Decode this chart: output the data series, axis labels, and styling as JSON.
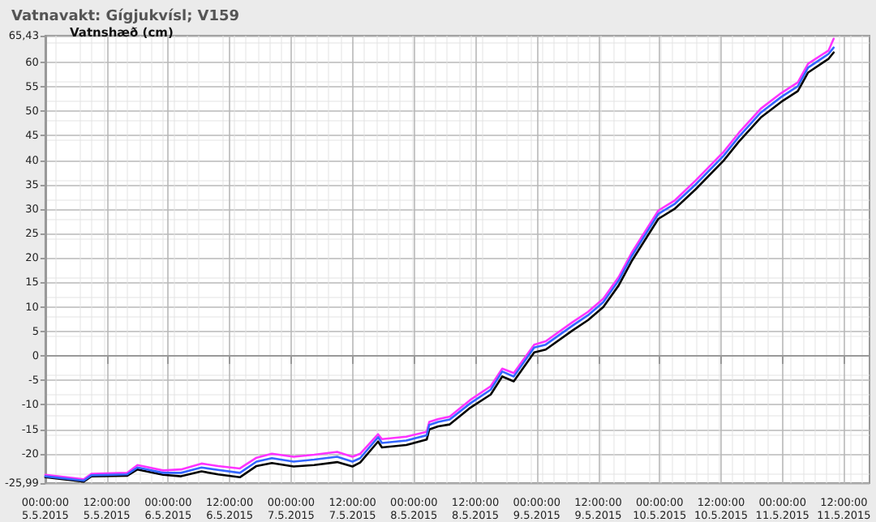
{
  "chart_data": {
    "type": "line",
    "title": "Vatnavakt: Gígjukvísl; V159",
    "ylabel": "Vatnshæð (cm)",
    "x": [
      "2015-05-05T00:00",
      "2015-05-05T07:30",
      "2015-05-05T09:00",
      "2015-05-05T16:00",
      "2015-05-05T18:00",
      "2015-05-05T23:00",
      "2015-05-06T02:30",
      "2015-05-06T06:30",
      "2015-05-06T09:45",
      "2015-05-06T14:00",
      "2015-05-06T17:15",
      "2015-05-06T20:15",
      "2015-05-07T00:30",
      "2015-05-07T04:30",
      "2015-05-07T09:00",
      "2015-05-07T12:00",
      "2015-05-07T13:30",
      "2015-05-07T17:00",
      "2015-05-07T17:45",
      "2015-05-07T22:30",
      "2015-05-08T02:30",
      "2015-05-08T03:00",
      "2015-05-08T04:45",
      "2015-05-08T07:00",
      "2015-05-08T11:00",
      "2015-05-08T15:00",
      "2015-05-08T17:15",
      "2015-05-08T19:30",
      "2015-05-08T23:30",
      "2015-05-09T01:45",
      "2015-05-09T07:00",
      "2015-05-09T10:00",
      "2015-05-09T13:00",
      "2015-05-09T16:00",
      "2015-05-09T18:30",
      "2015-05-09T23:45",
      "2015-05-10T03:00",
      "2015-05-10T07:00",
      "2015-05-10T12:30",
      "2015-05-10T15:30",
      "2015-05-10T19:45",
      "2015-05-10T23:45",
      "2015-05-11T03:00",
      "2015-05-11T05:00",
      "2015-05-11T09:00",
      "2015-05-11T10:00"
    ],
    "series": [
      {
        "color": "#000000",
        "values": [
          -24.8,
          -25.7,
          -24.6,
          -24.5,
          -23.2,
          -24.3,
          -24.6,
          -23.6,
          -24.2,
          -24.8,
          -22.5,
          -21.9,
          -22.6,
          -22.3,
          -21.7,
          -22.6,
          -21.8,
          -17.5,
          -18.7,
          -18.2,
          -17.1,
          -15.0,
          -14.4,
          -14.0,
          -10.6,
          -7.9,
          -4.2,
          -5.2,
          0.7,
          1.3,
          5.2,
          7.3,
          10.0,
          14.4,
          19.3,
          28.0,
          30.1,
          34.0,
          39.9,
          43.8,
          48.7,
          51.9,
          54.1,
          57.9,
          60.7,
          62.0
        ]
      },
      {
        "color": "#ff33ff",
        "values": [
          -24.3,
          -25.2,
          -24.1,
          -23.9,
          -22.3,
          -23.4,
          -23.2,
          -22.0,
          -22.5,
          -23.0,
          -20.8,
          -20.0,
          -20.6,
          -20.2,
          -19.6,
          -20.6,
          -20.0,
          -16.0,
          -17.0,
          -16.5,
          -15.5,
          -13.5,
          -12.9,
          -12.4,
          -9.0,
          -6.2,
          -2.6,
          -3.5,
          2.3,
          3.0,
          6.9,
          9.0,
          11.7,
          16.1,
          21.0,
          29.7,
          31.8,
          35.8,
          41.7,
          45.6,
          50.5,
          53.7,
          55.9,
          59.7,
          62.4,
          64.8
        ]
      },
      {
        "color": "#3366ff",
        "values": [
          -24.6,
          -25.5,
          -24.4,
          -24.2,
          -22.8,
          -23.9,
          -23.9,
          -22.8,
          -23.3,
          -23.9,
          -21.6,
          -20.9,
          -21.6,
          -21.2,
          -20.6,
          -21.6,
          -20.9,
          -16.6,
          -17.8,
          -17.3,
          -16.2,
          -14.1,
          -13.5,
          -13.0,
          -9.7,
          -6.9,
          -3.2,
          -4.2,
          1.7,
          2.3,
          6.2,
          8.3,
          11.0,
          15.4,
          20.3,
          29.0,
          31.1,
          35.0,
          40.9,
          44.8,
          49.7,
          52.9,
          55.1,
          58.9,
          61.7,
          63.0
        ]
      }
    ],
    "xlim": [
      "2015-05-05T00:00",
      "2015-05-11T17:00"
    ],
    "xticks": [
      {
        "value": "2015-05-05T00:00",
        "label": "00:00:00\n5.5.2015"
      },
      {
        "value": "2015-05-05T12:00",
        "label": "12:00:00\n5.5.2015"
      },
      {
        "value": "2015-05-06T00:00",
        "label": "00:00:00\n6.5.2015"
      },
      {
        "value": "2015-05-06T12:00",
        "label": "12:00:00\n6.5.2015"
      },
      {
        "value": "2015-05-07T00:00",
        "label": "00:00:00\n7.5.2015"
      },
      {
        "value": "2015-05-07T12:00",
        "label": "12:00:00\n7.5.2015"
      },
      {
        "value": "2015-05-08T00:00",
        "label": "00:00:00\n8.5.2015"
      },
      {
        "value": "2015-05-08T12:00",
        "label": "12:00:00\n8.5.2015"
      },
      {
        "value": "2015-05-09T00:00",
        "label": "00:00:00\n9.5.2015"
      },
      {
        "value": "2015-05-09T12:00",
        "label": "12:00:00\n9.5.2015"
      },
      {
        "value": "2015-05-10T00:00",
        "label": "00:00:00\n10.5.2015"
      },
      {
        "value": "2015-05-10T12:00",
        "label": "12:00:00\n10.5.2015"
      },
      {
        "value": "2015-05-11T00:00",
        "label": "00:00:00\n11.5.2015"
      },
      {
        "value": "2015-05-11T12:00",
        "label": "12:00:00\n11.5.2015"
      }
    ],
    "ylim": [
      -25.99,
      65.43
    ],
    "yticks": [
      {
        "value": -25.99,
        "label": "-25,99"
      },
      -20,
      -15,
      -10,
      -5,
      0,
      5,
      10,
      15,
      20,
      25,
      30,
      35,
      40,
      45,
      50,
      55,
      60,
      {
        "value": 65.43,
        "label": "65,43"
      }
    ],
    "grid": true,
    "marker": "none",
    "line_style": "solid"
  }
}
